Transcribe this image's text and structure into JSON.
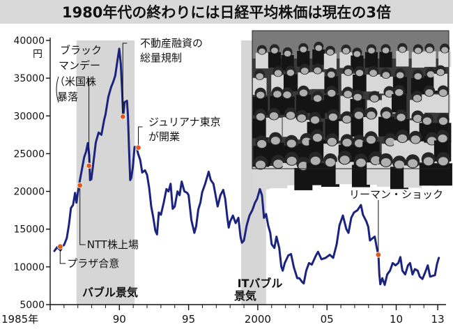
{
  "chart_data": {
    "type": "line",
    "title": "1980年代の終わりには日経平均株価は現在の3倍",
    "title_bg": "#d9d9d9",
    "line_color": "#1a237e",
    "marker_color": "#e05a1a",
    "shade_color": "#d6d6d6",
    "photo": {
      "description_shown": "stock exchange trading floor crowd (black-and-white photograph)"
    },
    "y_axis": {
      "unit_label": "円",
      "ylim": [
        5000,
        40000
      ],
      "ticks": [
        5000,
        10000,
        15000,
        20000,
        25000,
        30000,
        35000,
        40000
      ],
      "tick_labels": [
        "5000",
        "10000",
        "15000",
        "20000",
        "25000",
        "30000",
        "35000",
        "40000"
      ]
    },
    "x_axis": {
      "xlim": [
        1985.0,
        2013.6
      ],
      "ticks": [
        1985,
        1990,
        1995,
        2000,
        2005,
        2010,
        2013
      ],
      "tick_labels": [
        "1985年",
        "90",
        "95",
        "2000",
        "05",
        "10",
        "13"
      ],
      "minor_ticks": [
        1986,
        1987,
        1988,
        1989,
        1991,
        1992,
        1993,
        1994,
        1996,
        1997,
        1998,
        1999,
        2001,
        2002,
        2003,
        2004,
        2006,
        2007,
        2008,
        2009,
        2011,
        2012
      ]
    },
    "shaded_periods": [
      {
        "label": "バブル景気",
        "from": 1986.9,
        "to": 1991.1
      },
      {
        "label": "ITバブル景気",
        "from": 1998.8,
        "to": 2000.6
      }
    ],
    "series": [
      {
        "points": [
          [
            1985.3,
            12100
          ],
          [
            1985.5,
            12600
          ],
          [
            1985.75,
            12200
          ],
          [
            1985.9,
            12800
          ],
          [
            1986.0,
            12900
          ],
          [
            1986.2,
            13800
          ],
          [
            1986.35,
            15500
          ],
          [
            1986.5,
            17800
          ],
          [
            1986.65,
            18200
          ],
          [
            1986.8,
            19800
          ],
          [
            1986.9,
            18500
          ],
          [
            1987.0,
            19800
          ],
          [
            1987.15,
            21500
          ],
          [
            1987.3,
            23000
          ],
          [
            1987.45,
            24500
          ],
          [
            1987.6,
            25300
          ],
          [
            1987.72,
            26400
          ],
          [
            1987.82,
            24800
          ],
          [
            1987.88,
            21500
          ],
          [
            1987.97,
            21600
          ],
          [
            1988.1,
            23500
          ],
          [
            1988.3,
            26500
          ],
          [
            1988.5,
            27800
          ],
          [
            1988.7,
            27500
          ],
          [
            1988.9,
            29500
          ],
          [
            1989.0,
            30200
          ],
          [
            1989.2,
            32500
          ],
          [
            1989.4,
            33800
          ],
          [
            1989.55,
            34500
          ],
          [
            1989.7,
            35300
          ],
          [
            1989.85,
            37200
          ],
          [
            1989.99,
            38900
          ],
          [
            1990.1,
            36900
          ],
          [
            1990.2,
            33200
          ],
          [
            1990.27,
            29900
          ],
          [
            1990.38,
            31800
          ],
          [
            1990.55,
            32000
          ],
          [
            1990.62,
            30000
          ],
          [
            1990.7,
            25500
          ],
          [
            1990.78,
            21500
          ],
          [
            1990.86,
            21800
          ],
          [
            1990.97,
            23200
          ],
          [
            1991.1,
            25900
          ],
          [
            1991.25,
            25800
          ],
          [
            1991.35,
            25000
          ],
          [
            1991.5,
            24200
          ],
          [
            1991.65,
            22500
          ],
          [
            1991.85,
            22800
          ],
          [
            1992.0,
            22200
          ],
          [
            1992.15,
            20500
          ],
          [
            1992.3,
            18000
          ],
          [
            1992.45,
            16500
          ],
          [
            1992.6,
            14800
          ],
          [
            1992.72,
            14300
          ],
          [
            1992.85,
            17200
          ],
          [
            1993.0,
            16900
          ],
          [
            1993.2,
            18500
          ],
          [
            1993.4,
            20300
          ],
          [
            1993.55,
            20000
          ],
          [
            1993.7,
            21000
          ],
          [
            1993.85,
            17700
          ],
          [
            1994.0,
            18000
          ],
          [
            1994.2,
            20000
          ],
          [
            1994.35,
            19500
          ],
          [
            1994.5,
            21300
          ],
          [
            1994.7,
            20000
          ],
          [
            1994.9,
            19800
          ],
          [
            1995.0,
            19500
          ],
          [
            1995.2,
            16200
          ],
          [
            1995.42,
            14500
          ],
          [
            1995.55,
            15400
          ],
          [
            1995.7,
            17600
          ],
          [
            1995.85,
            18500
          ],
          [
            1995.98,
            19900
          ],
          [
            1996.2,
            21000
          ],
          [
            1996.45,
            22600
          ],
          [
            1996.6,
            21500
          ],
          [
            1996.8,
            21000
          ],
          [
            1996.95,
            19500
          ],
          [
            1997.1,
            18000
          ],
          [
            1997.3,
            19500
          ],
          [
            1997.5,
            20200
          ],
          [
            1997.65,
            19000
          ],
          [
            1997.8,
            16500
          ],
          [
            1997.9,
            15200
          ],
          [
            1998.0,
            16000
          ],
          [
            1998.2,
            16800
          ],
          [
            1998.4,
            15800
          ],
          [
            1998.6,
            16500
          ],
          [
            1998.75,
            14000
          ],
          [
            1998.85,
            13200
          ],
          [
            1999.0,
            13500
          ],
          [
            1999.2,
            15500
          ],
          [
            1999.4,
            16800
          ],
          [
            1999.6,
            17500
          ],
          [
            1999.8,
            18500
          ],
          [
            1999.95,
            19000
          ],
          [
            2000.15,
            20300
          ],
          [
            2000.3,
            19500
          ],
          [
            2000.45,
            16500
          ],
          [
            2000.6,
            17000
          ],
          [
            2000.75,
            15500
          ],
          [
            2000.9,
            14500
          ],
          [
            2001.0,
            13000
          ],
          [
            2001.2,
            12500
          ],
          [
            2001.35,
            14000
          ],
          [
            2001.55,
            12500
          ],
          [
            2001.7,
            10000
          ],
          [
            2001.8,
            9500
          ],
          [
            2001.95,
            10500
          ],
          [
            2002.2,
            11500
          ],
          [
            2002.4,
            11700
          ],
          [
            2002.6,
            10000
          ],
          [
            2002.85,
            8500
          ],
          [
            2003.0,
            8500
          ],
          [
            2003.2,
            8000
          ],
          [
            2003.32,
            7800
          ],
          [
            2003.5,
            9500
          ],
          [
            2003.7,
            10500
          ],
          [
            2003.9,
            10300
          ],
          [
            2004.2,
            11500
          ],
          [
            2004.35,
            12000
          ],
          [
            2004.6,
            11000
          ],
          [
            2004.9,
            11200
          ],
          [
            2005.2,
            11600
          ],
          [
            2005.45,
            11200
          ],
          [
            2005.7,
            13000
          ],
          [
            2005.9,
            15500
          ],
          [
            2006.15,
            16800
          ],
          [
            2006.4,
            15000
          ],
          [
            2006.55,
            14500
          ],
          [
            2006.75,
            16500
          ],
          [
            2006.95,
            17200
          ],
          [
            2007.2,
            17500
          ],
          [
            2007.45,
            18200
          ],
          [
            2007.6,
            16900
          ],
          [
            2007.85,
            16000
          ],
          [
            2007.98,
            15300
          ],
          [
            2008.1,
            13500
          ],
          [
            2008.3,
            13800
          ],
          [
            2008.45,
            14000
          ],
          [
            2008.6,
            12500
          ],
          [
            2008.72,
            11400
          ],
          [
            2008.78,
            9000
          ],
          [
            2008.85,
            7700
          ],
          [
            2009.0,
            8500
          ],
          [
            2009.17,
            7600
          ],
          [
            2009.35,
            9000
          ],
          [
            2009.55,
            9500
          ],
          [
            2009.75,
            10500
          ],
          [
            2009.95,
            10200
          ],
          [
            2010.15,
            10500
          ],
          [
            2010.3,
            11300
          ],
          [
            2010.45,
            9500
          ],
          [
            2010.65,
            9000
          ],
          [
            2010.85,
            10200
          ],
          [
            2011.0,
            10500
          ],
          [
            2011.18,
            9000
          ],
          [
            2011.35,
            9700
          ],
          [
            2011.55,
            9500
          ],
          [
            2011.7,
            8700
          ],
          [
            2011.9,
            8400
          ],
          [
            2012.1,
            9300
          ],
          [
            2012.28,
            10200
          ],
          [
            2012.45,
            8700
          ],
          [
            2012.6,
            8800
          ],
          [
            2012.8,
            8900
          ],
          [
            2012.95,
            10400
          ],
          [
            2013.08,
            11200
          ]
        ]
      }
    ],
    "annotations": [
      {
        "id": "plaza",
        "text": "プラザ合意",
        "x": 1985.72,
        "y": 12700
      },
      {
        "id": "blackmonday",
        "text_lines": [
          "ブラック",
          "マンデー",
          "（米国株",
          "暴落"
        ],
        "x": 1987.8,
        "y": 23400
      },
      {
        "id": "ntt",
        "text": "NTT株上場",
        "x": 1987.15,
        "y": 20800
      },
      {
        "id": "sodoryo",
        "text_lines": [
          "不動産融資の",
          "総量規制"
        ],
        "x": 1990.25,
        "y": 29900
      },
      {
        "id": "julianas",
        "text_lines": [
          "ジュリアナ東京",
          "が開業"
        ],
        "x": 1991.37,
        "y": 25800
      },
      {
        "id": "lehman",
        "text": "リーマン・ショック",
        "x": 2008.71,
        "y": 11600
      }
    ]
  }
}
